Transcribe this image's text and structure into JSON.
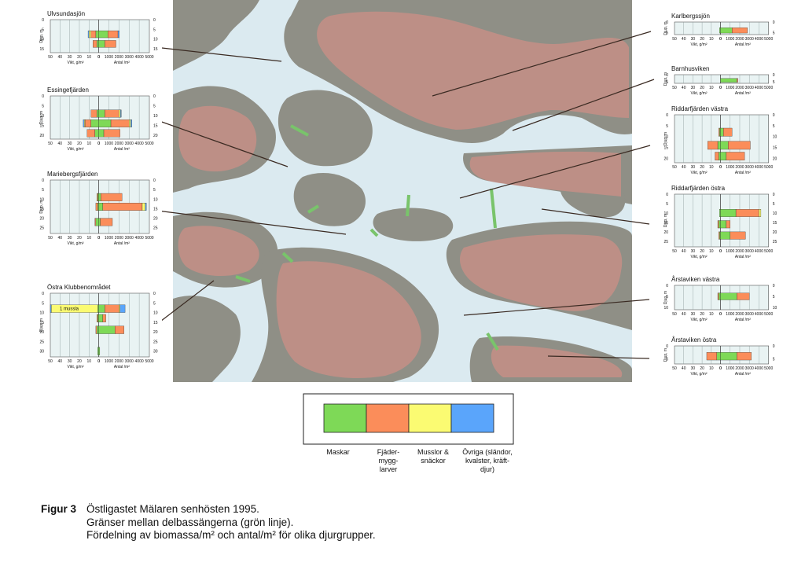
{
  "map": {
    "background": "#dbeaf0",
    "land_color": "#8f8f86",
    "urban_color": "#c58f86",
    "boundary_color": "#79c46b"
  },
  "legend": {
    "items": [
      {
        "label": "Maskar",
        "color": "#7ed957"
      },
      {
        "label": "Fjäder-\nmygg-\nlarver",
        "color": "#fb8d5a"
      },
      {
        "label": "Musslor &\nsnäckor",
        "color": "#fbfb72"
      },
      {
        "label": "Övriga (sländor,\nkvalster, kräft-\ndjur)",
        "color": "#5aa5fb"
      }
    ]
  },
  "caption": {
    "figure_label": "Figur 3",
    "line1": "Östligastet Mälaren senhösten 1995.",
    "line2": "Gränser mellan delbassängerna (grön linje).",
    "line3": "Fördelning av biomassa/m² och antal/m² för olika djurgrupper."
  },
  "chart_data": [
    {
      "type": "bar",
      "title": "Ulvsundasjön",
      "ylabel": "Djup, m",
      "xlabel_left": "Vikt, g/m²",
      "xlabel_right": "Antal /m²",
      "left_ticks": [
        "50",
        "40",
        "30",
        "20",
        "10",
        "0"
      ],
      "right_ticks": [
        "0",
        "1000",
        "2000",
        "3000",
        "4000",
        "5000"
      ],
      "depth_ticks": [
        "0",
        "5",
        "10",
        "15"
      ],
      "xlim_left": [
        0,
        50
      ],
      "xlim_right": [
        0,
        5000
      ],
      "depth_range": [
        0,
        17
      ],
      "rows": [
        {
          "depth": 7.5,
          "weight": [
            3,
            5,
            2,
            1
          ],
          "count": [
            900,
            1000,
            0,
            120
          ]
        },
        {
          "depth": 12.5,
          "weight": [
            2,
            4,
            0,
            0
          ],
          "count": [
            600,
            1100,
            0,
            0
          ]
        }
      ]
    },
    {
      "type": "bar",
      "title": "Essingefjärden",
      "ylabel": "Djup, m",
      "xlabel_left": "Vikt, g/m²",
      "xlabel_right": "Antal /m²",
      "left_ticks": [
        "50",
        "40",
        "30",
        "20",
        "10",
        "0"
      ],
      "right_ticks": [
        "0",
        "1000",
        "2000",
        "3000",
        "4000",
        "5000"
      ],
      "depth_ticks": [
        "0",
        "5",
        "10",
        "15",
        "20"
      ],
      "xlim_left": [
        0,
        50
      ],
      "xlim_right": [
        0,
        5000
      ],
      "depth_range": [
        0,
        22
      ],
      "rows": [
        {
          "depth": 9,
          "weight": [
            2,
            6,
            0,
            0
          ],
          "count": [
            600,
            1400,
            150,
            80
          ]
        },
        {
          "depth": 14,
          "weight": [
            8,
            6,
            1,
            1
          ],
          "count": [
            1200,
            1800,
            150,
            120
          ]
        },
        {
          "depth": 19,
          "weight": [
            4,
            8,
            0,
            0
          ],
          "count": [
            500,
            1600,
            0,
            0
          ]
        }
      ]
    },
    {
      "type": "bar",
      "title": "Mariebergsfjärden",
      "ylabel": "Djup, m",
      "xlabel_left": "Vikt, g/m²",
      "xlabel_right": "Antal /m²",
      "left_ticks": [
        "50",
        "40",
        "30",
        "20",
        "10",
        "0"
      ],
      "right_ticks": [
        "0",
        "1000",
        "2000",
        "3000",
        "4000",
        "5000"
      ],
      "depth_ticks": [
        "0",
        "5",
        "10",
        "15",
        "20",
        "25"
      ],
      "xlim_left": [
        0,
        50
      ],
      "xlim_right": [
        0,
        5000
      ],
      "depth_range": [
        0,
        28
      ],
      "rows": [
        {
          "depth": 9,
          "weight": [
            1,
            1,
            0,
            0
          ],
          "count": [
            200,
            2100,
            0,
            0
          ]
        },
        {
          "depth": 14,
          "weight": [
            1,
            2,
            0,
            0
          ],
          "count": [
            400,
            3900,
            300,
            100
          ]
        },
        {
          "depth": 22,
          "weight": [
            3,
            1,
            0,
            0
          ],
          "count": [
            150,
            1200,
            0,
            0
          ]
        }
      ]
    },
    {
      "type": "bar",
      "title": "Östra Klubbenområdet",
      "annotation": "1 mussla",
      "ylabel": "Djup, m",
      "xlabel_left": "Vikt, g/m²",
      "xlabel_right": "Antal /m²",
      "left_ticks": [
        "50",
        "40",
        "30",
        "20",
        "10",
        "0"
      ],
      "right_ticks": [
        "0",
        "1000",
        "2000",
        "3000",
        "4000",
        "5000"
      ],
      "depth_ticks": [
        "0",
        "5",
        "10",
        "15",
        "20",
        "25",
        "30"
      ],
      "xlim_left": [
        0,
        50
      ],
      "xlim_right": [
        0,
        5000
      ],
      "depth_range": [
        0,
        33
      ],
      "rows": [
        {
          "depth": 8,
          "weight": [
            1,
            0,
            48,
            1
          ],
          "count": [
            600,
            1400,
            100,
            500
          ]
        },
        {
          "depth": 13,
          "weight": [
            1,
            1,
            0,
            0
          ],
          "count": [
            400,
            300,
            0,
            0
          ]
        },
        {
          "depth": 19,
          "weight": [
            2,
            1,
            0,
            0
          ],
          "count": [
            1600,
            900,
            0,
            0
          ]
        },
        {
          "depth": 30,
          "weight": [
            1,
            0,
            0,
            0
          ],
          "count": [
            100,
            0,
            0,
            0
          ]
        }
      ]
    },
    {
      "type": "bar",
      "title": "Karlbergssjön",
      "ylabel": "Djup, m",
      "xlabel_left": "Vikt, g/m²",
      "xlabel_right": "Antal /m²",
      "left_ticks": [
        "50",
        "40",
        "30",
        "20",
        "10",
        "0"
      ],
      "right_ticks": [
        "0",
        "1000",
        "2000",
        "3000",
        "4000",
        "5000"
      ],
      "depth_ticks": [
        "0",
        "5"
      ],
      "xlim_left": [
        0,
        50
      ],
      "xlim_right": [
        0,
        5000
      ],
      "depth_range": [
        0,
        6
      ],
      "rows": [
        {
          "depth": 4,
          "weight": [
            1,
            0,
            0,
            0
          ],
          "count": [
            1200,
            1600,
            0,
            0
          ]
        }
      ]
    },
    {
      "type": "bar",
      "title": "Barnhusviken",
      "ylabel": "Djup, m",
      "xlabel_left": "Vikt, g/m²",
      "xlabel_right": "Antal /m²",
      "left_ticks": [
        "50",
        "40",
        "30",
        "20",
        "10",
        "0"
      ],
      "right_ticks": [
        "0",
        "1000",
        "2000",
        "3000",
        "4000",
        "5000"
      ],
      "depth_ticks": [
        "0",
        "5"
      ],
      "xlim_left": [
        0,
        50
      ],
      "xlim_right": [
        0,
        5000
      ],
      "depth_range": [
        0,
        6
      ],
      "rows": [
        {
          "depth": 4,
          "weight": [
            0,
            0,
            0,
            0
          ],
          "count": [
            1700,
            100,
            0,
            0
          ]
        }
      ]
    },
    {
      "type": "bar",
      "title": "Riddarfjärden västra",
      "ylabel": "Djup, m",
      "xlabel_left": "Vikt, g/m²",
      "xlabel_right": "Antal /m²",
      "left_ticks": [
        "50",
        "40",
        "30",
        "20",
        "10",
        "0"
      ],
      "right_ticks": [
        "0",
        "1000",
        "2000",
        "3000",
        "4000",
        "5000"
      ],
      "depth_ticks": [
        "0",
        "5",
        "10",
        "15",
        "20"
      ],
      "xlim_left": [
        0,
        50
      ],
      "xlim_right": [
        0,
        5000
      ],
      "depth_range": [
        0,
        22
      ],
      "rows": [
        {
          "depth": 8,
          "weight": [
            1,
            1,
            0,
            0
          ],
          "count": [
            300,
            900,
            0,
            0
          ]
        },
        {
          "depth": 14,
          "weight": [
            3,
            11,
            0,
            0
          ],
          "count": [
            800,
            2300,
            0,
            0
          ]
        },
        {
          "depth": 19,
          "weight": [
            2,
            4,
            0,
            0
          ],
          "count": [
            600,
            1900,
            0,
            0
          ]
        }
      ]
    },
    {
      "type": "bar",
      "title": "Riddarfjärden östra",
      "ylabel": "Djup, m",
      "xlabel_left": "Vikt, g/m²",
      "xlabel_right": "Antal /m²",
      "left_ticks": [
        "50",
        "40",
        "30",
        "20",
        "10",
        "0"
      ],
      "right_ticks": [
        "0",
        "1000",
        "2000",
        "3000",
        "4000",
        "5000"
      ],
      "depth_ticks": [
        "0",
        "5",
        "10",
        "15",
        "20",
        "25"
      ],
      "xlim_left": [
        0,
        50
      ],
      "xlim_right": [
        0,
        5000
      ],
      "depth_range": [
        0,
        28
      ],
      "rows": [
        {
          "depth": 10,
          "weight": [
            1,
            0,
            0,
            0
          ],
          "count": [
            1600,
            2400,
            200,
            0
          ]
        },
        {
          "depth": 16,
          "weight": [
            2,
            1,
            0,
            0
          ],
          "count": [
            600,
            400,
            0,
            0
          ]
        },
        {
          "depth": 22,
          "weight": [
            1,
            1,
            0,
            0
          ],
          "count": [
            1000,
            1600,
            0,
            0
          ]
        }
      ]
    },
    {
      "type": "bar",
      "title": "Årstaviken västra",
      "ylabel": "Djup, m",
      "xlabel_left": "Vikt, g/m²",
      "xlabel_right": "Antal /m²",
      "left_ticks": [
        "50",
        "40",
        "30",
        "20",
        "10",
        "0"
      ],
      "right_ticks": [
        "0",
        "1000",
        "2000",
        "3000",
        "4000",
        "5000"
      ],
      "depth_ticks": [
        "0",
        "5",
        "10"
      ],
      "xlim_left": [
        0,
        50
      ],
      "xlim_right": [
        0,
        5000
      ],
      "depth_range": [
        0,
        11
      ],
      "rows": [
        {
          "depth": 5,
          "weight": [
            2,
            1,
            0,
            0
          ],
          "count": [
            1700,
            1300,
            0,
            0
          ]
        }
      ]
    },
    {
      "type": "bar",
      "title": "Årstaviken östra",
      "ylabel": "Djup, m",
      "xlabel_left": "Vikt, g/m²",
      "xlabel_right": "Antal /m²",
      "left_ticks": [
        "50",
        "40",
        "30",
        "20",
        "10",
        "0"
      ],
      "right_ticks": [
        "0",
        "1000",
        "2000",
        "3000",
        "4000",
        "5000"
      ],
      "depth_ticks": [
        "0",
        "5"
      ],
      "xlim_left": [
        0,
        50
      ],
      "xlim_right": [
        0,
        5000
      ],
      "depth_range": [
        0,
        7
      ],
      "rows": [
        {
          "depth": 4,
          "weight": [
            4,
            11,
            0,
            0
          ],
          "count": [
            1700,
            1500,
            0,
            0
          ]
        }
      ]
    }
  ]
}
